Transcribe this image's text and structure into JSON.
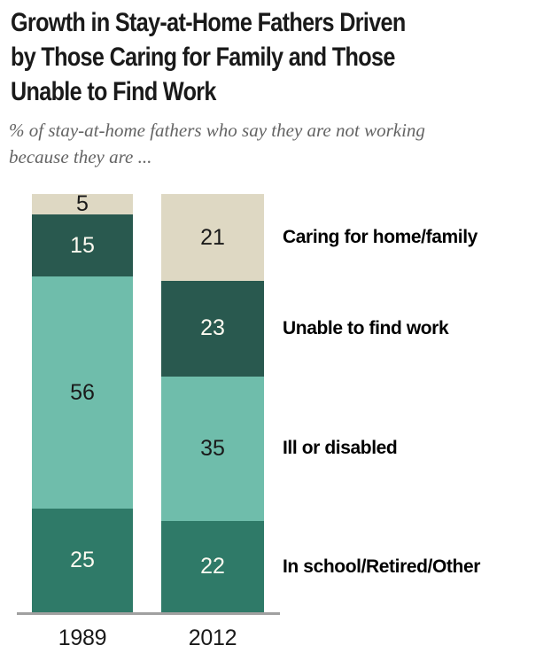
{
  "page": {
    "background": "#ffffff"
  },
  "header": {
    "title_lines": [
      "Growth in Stay-at-Home Fathers Driven",
      "by Those Caring for Family and Those",
      "Unable to Find Work"
    ],
    "subtitle_lines": [
      "% of stay-at-home fathers who say they are not working",
      "because they are ..."
    ]
  },
  "chart_data": {
    "type": "bar",
    "stacked": true,
    "title": "Growth in Stay-at-Home Fathers Driven by Those Caring for Family and Those Unable to Find Work",
    "subtitle": "% of stay-at-home fathers who say they are not working because they are ...",
    "categories": [
      "1989",
      "2012"
    ],
    "series": [
      {
        "name": "Caring for home/family",
        "values": [
          5,
          21
        ],
        "color": "#ded8c3",
        "value_label_color": "#1a1a1a"
      },
      {
        "name": "Unable to find work",
        "values": [
          15,
          23
        ],
        "color": "#29594f",
        "value_label_color": "#fcfaf0"
      },
      {
        "name": "Ill or disabled",
        "values": [
          56,
          35
        ],
        "color": "#6fbdab",
        "value_label_color": "#1a1a1a"
      },
      {
        "name": "In school/Retired/Other",
        "values": [
          25,
          22
        ],
        "color": "#2f7a68",
        "value_label_color": "#fcfaf0"
      }
    ],
    "stack_order": "top-to-bottom",
    "value_unit": "percent",
    "ylim": [
      0,
      101
    ],
    "grid": false,
    "legend_position": "right-of-bars, aligned to 2012 segments",
    "axis": {
      "baseline_color": "#a0a0a0",
      "tick_label_color": "#1a1a1a"
    }
  }
}
